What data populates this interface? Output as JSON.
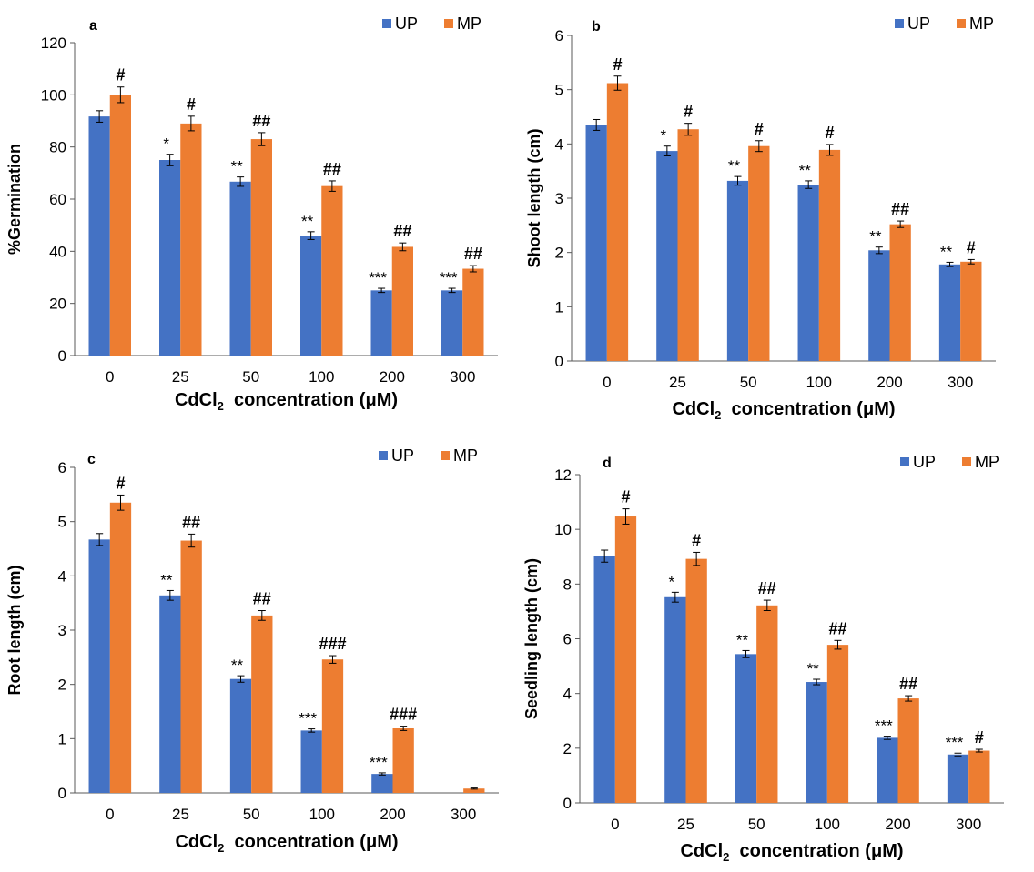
{
  "colors": {
    "UP": "#4472C4",
    "MP": "#ED7D31"
  },
  "chart_data": [
    {
      "type": "bar",
      "panel_label": "a",
      "ylabel": "%Germination",
      "xlabel_main": "CdCl",
      "xlabel_sub": "2",
      "xlabel_rest": "concentration (μM)",
      "categories": [
        "0",
        "25",
        "50",
        "100",
        "200",
        "300"
      ],
      "ylim": [
        0,
        120
      ],
      "yticks": [
        0,
        20,
        40,
        60,
        80,
        100,
        120
      ],
      "legend": "top-right",
      "grid": false,
      "series": [
        {
          "name": "UP",
          "values": [
            91.7,
            75,
            66.7,
            46,
            25,
            25
          ],
          "errors": [
            2.2,
            2.2,
            1.8,
            1.5,
            0.8,
            0.8
          ],
          "significance": [
            "",
            "*",
            "**",
            "**",
            "***",
            "***"
          ]
        },
        {
          "name": "MP",
          "values": [
            100,
            89,
            83,
            65,
            41.7,
            33.3
          ],
          "errors": [
            3,
            2.8,
            2.5,
            2,
            1.5,
            1.2
          ],
          "significance": [
            "#",
            "#",
            "##",
            "##",
            "##",
            "##"
          ]
        }
      ]
    },
    {
      "type": "bar",
      "panel_label": "b",
      "ylabel": "Shoot length (cm)",
      "xlabel_main": "CdCl",
      "xlabel_sub": "2",
      "xlabel_rest": "concentration (μM)",
      "categories": [
        "0",
        "25",
        "50",
        "100",
        "200",
        "300"
      ],
      "ylim": [
        0,
        6
      ],
      "yticks": [
        0,
        1,
        2,
        3,
        4,
        5,
        6
      ],
      "legend": "top-right",
      "grid": false,
      "series": [
        {
          "name": "UP",
          "values": [
            4.35,
            3.87,
            3.32,
            3.25,
            2.04,
            1.78
          ],
          "errors": [
            0.1,
            0.09,
            0.08,
            0.07,
            0.06,
            0.04
          ],
          "significance": [
            "",
            "*",
            "**",
            "**",
            "**",
            "**"
          ]
        },
        {
          "name": "MP",
          "values": [
            5.12,
            4.27,
            3.96,
            3.89,
            2.52,
            1.83
          ],
          "errors": [
            0.13,
            0.11,
            0.1,
            0.1,
            0.06,
            0.04
          ],
          "significance": [
            "#",
            "#",
            "#",
            "#",
            "##",
            "#"
          ]
        }
      ]
    },
    {
      "type": "bar",
      "panel_label": "c",
      "ylabel": "Root length (cm)",
      "xlabel_main": "CdCl",
      "xlabel_sub": "2",
      "xlabel_rest": "concentration (μM)",
      "categories": [
        "0",
        "25",
        "50",
        "100",
        "200",
        "300"
      ],
      "ylim": [
        0,
        6
      ],
      "yticks": [
        0,
        1,
        2,
        3,
        4,
        5,
        6
      ],
      "legend": "top-right",
      "grid": false,
      "series": [
        {
          "name": "UP",
          "values": [
            4.67,
            3.64,
            2.1,
            1.15,
            0.35,
            0
          ],
          "errors": [
            0.11,
            0.09,
            0.06,
            0.03,
            0.02,
            0
          ],
          "significance": [
            "",
            "**",
            "**",
            "***",
            "***",
            ""
          ]
        },
        {
          "name": "MP",
          "values": [
            5.35,
            4.65,
            3.27,
            2.46,
            1.19,
            0.08
          ],
          "errors": [
            0.14,
            0.12,
            0.09,
            0.07,
            0.04,
            0.01
          ],
          "significance": [
            "#",
            "##",
            "##",
            "###",
            "###",
            ""
          ]
        }
      ]
    },
    {
      "type": "bar",
      "panel_label": "d",
      "ylabel": "Seedling length (cm)",
      "xlabel_main": "CdCl",
      "xlabel_sub": "2",
      "xlabel_rest": "concentration (μM)",
      "categories": [
        "0",
        "25",
        "50",
        "100",
        "200",
        "300"
      ],
      "ylim": [
        0,
        12
      ],
      "yticks": [
        0,
        2,
        4,
        6,
        8,
        10,
        12
      ],
      "legend": "top-right",
      "grid": false,
      "series": [
        {
          "name": "UP",
          "values": [
            9.02,
            7.52,
            5.44,
            4.42,
            2.38,
            1.77
          ],
          "errors": [
            0.22,
            0.18,
            0.13,
            0.1,
            0.06,
            0.05
          ],
          "significance": [
            "",
            "*",
            "**",
            "**",
            "***",
            "***"
          ]
        },
        {
          "name": "MP",
          "values": [
            10.47,
            8.92,
            7.22,
            5.78,
            3.82,
            1.91
          ],
          "errors": [
            0.28,
            0.24,
            0.19,
            0.16,
            0.1,
            0.05
          ],
          "significance": [
            "#",
            "#",
            "##",
            "##",
            "##",
            "#"
          ]
        }
      ]
    }
  ]
}
